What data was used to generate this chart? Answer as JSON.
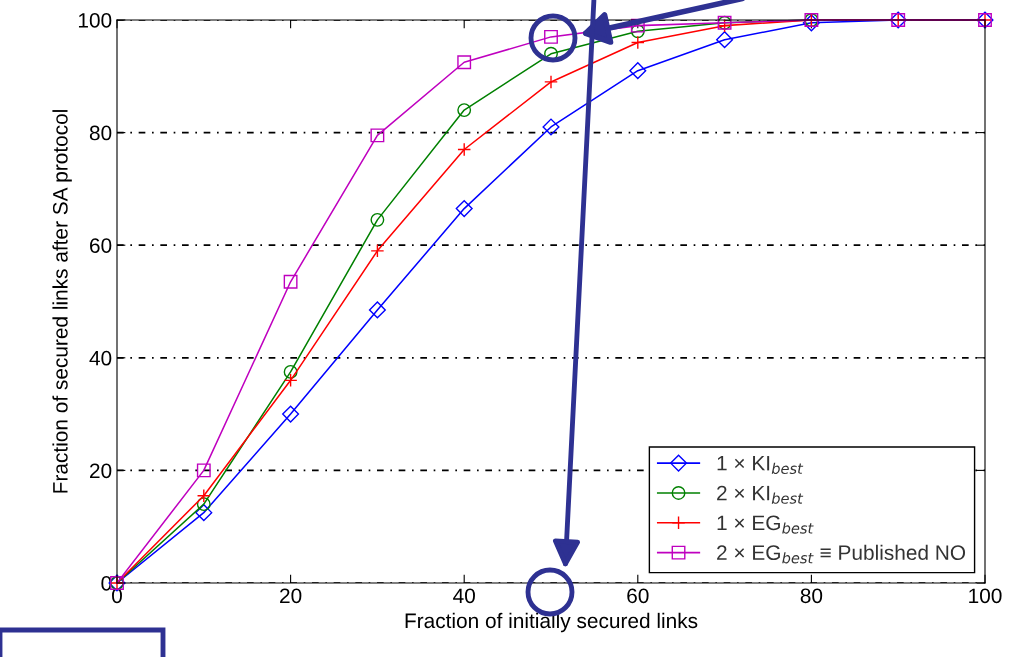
{
  "chart_data": {
    "type": "line",
    "xlabel": "Fraction of initially secured links",
    "ylabel": "Fraction of secured links after SA protocol",
    "x": [
      0,
      10,
      20,
      30,
      40,
      50,
      60,
      70,
      80,
      90,
      100
    ],
    "series": [
      {
        "name": "1 × KI$_{best}$",
        "color": "#0000ff",
        "marker": "diamond",
        "values": [
          0,
          12.5,
          30,
          48.5,
          66.5,
          81,
          91,
          96.5,
          99.5,
          100,
          100
        ]
      },
      {
        "name": "2 × KI$_{best}$",
        "color": "#008000",
        "marker": "circle",
        "values": [
          0,
          14,
          37.5,
          64.5,
          84,
          94,
          98,
          99.5,
          100,
          null,
          null
        ]
      },
      {
        "name": "1 × EG$_{best}$",
        "color": "#ff0000",
        "marker": "cross",
        "values": [
          0,
          15.5,
          36,
          59,
          77,
          89,
          96,
          99,
          100,
          100,
          100
        ]
      },
      {
        "name": "2 × EG$_{best}$ ≡ Published NO",
        "color": "#bf00bf",
        "marker": "square",
        "values": [
          0,
          20,
          53.5,
          79.5,
          92.5,
          97,
          99,
          99.5,
          100,
          100,
          100
        ]
      }
    ],
    "xlim": [
      0,
      100
    ],
    "ylim": [
      0,
      100
    ],
    "xticks": [
      0,
      20,
      40,
      60,
      80,
      100
    ],
    "yticks": [
      0,
      20,
      40,
      60,
      80,
      100
    ],
    "grid": "y",
    "legend": "bottom right",
    "line_style": "solid"
  }
}
